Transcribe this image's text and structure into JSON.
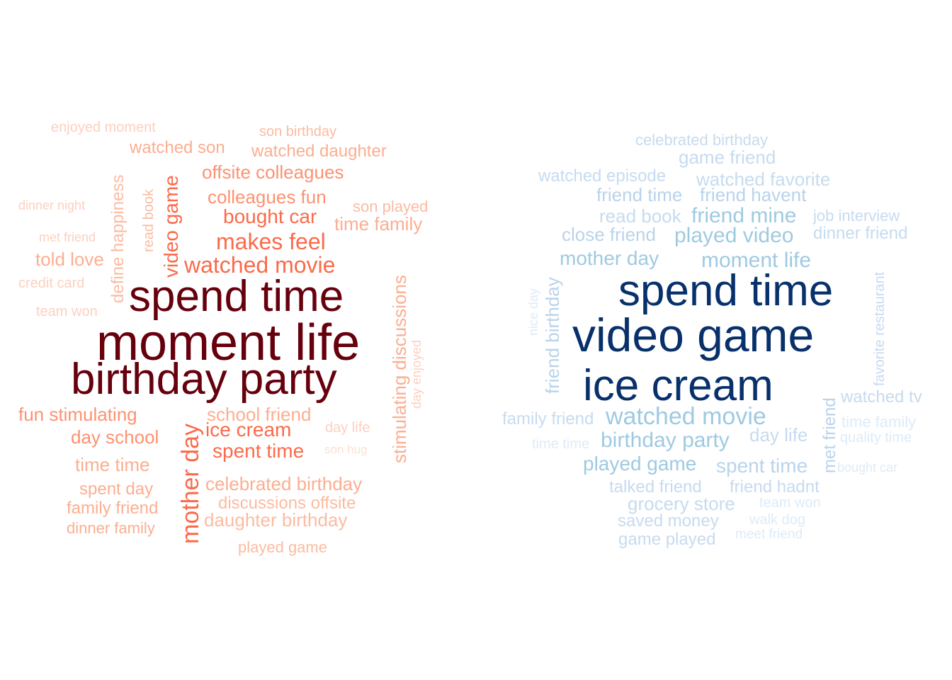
{
  "clouds": [
    {
      "id": "red",
      "words": [
        {
          "text": "spend time",
          "color": "#67000d",
          "weight": 1.0
        },
        {
          "text": "moment life",
          "color": "#67000d",
          "weight": 1.0
        },
        {
          "text": "birthday party",
          "color": "#67000d",
          "weight": 1.0
        },
        {
          "text": "watched movie",
          "color": "#fb6a4a",
          "weight": 0.45
        },
        {
          "text": "makes feel",
          "color": "#fb6a4a",
          "weight": 0.45
        },
        {
          "text": "bought car",
          "color": "#fb6a4a",
          "weight": 0.4
        },
        {
          "text": "ice cream",
          "color": "#fb6a4a",
          "weight": 0.4
        },
        {
          "text": "spent time",
          "color": "#fb6a4a",
          "weight": 0.4
        },
        {
          "text": "mother day",
          "color": "#fb6a4a",
          "weight": 0.45,
          "rotate": -90
        },
        {
          "text": "video game",
          "color": "#fb6a4a",
          "weight": 0.4,
          "rotate": -90
        },
        {
          "text": "colleagues fun",
          "color": "#fc9272",
          "weight": 0.35
        },
        {
          "text": "offsite colleagues",
          "color": "#fc9272",
          "weight": 0.35
        },
        {
          "text": "watched daughter",
          "color": "#fcae91",
          "weight": 0.3
        },
        {
          "text": "watched son",
          "color": "#fcae91",
          "weight": 0.3
        },
        {
          "text": "son birthday",
          "color": "#fcbba1",
          "weight": 0.25
        },
        {
          "text": "enjoyed moment",
          "color": "#fdd0c0",
          "weight": 0.2
        },
        {
          "text": "define happiness",
          "color": "#fcbba1",
          "weight": 0.3,
          "rotate": -90
        },
        {
          "text": "read book",
          "color": "#fcbba1",
          "weight": 0.25,
          "rotate": -90
        },
        {
          "text": "son played",
          "color": "#fcbba1",
          "weight": 0.25
        },
        {
          "text": "time family",
          "color": "#fcae91",
          "weight": 0.3
        },
        {
          "text": "dinner night",
          "color": "#fdd0c0",
          "weight": 0.2
        },
        {
          "text": "met friend",
          "color": "#fdd0c0",
          "weight": 0.2
        },
        {
          "text": "told love",
          "color": "#fcae91",
          "weight": 0.3
        },
        {
          "text": "credit card",
          "color": "#fdd0c0",
          "weight": 0.2
        },
        {
          "text": "team won",
          "color": "#fdd0c0",
          "weight": 0.2
        },
        {
          "text": "stimulating discussions",
          "color": "#fcae91",
          "weight": 0.3,
          "rotate": -90
        },
        {
          "text": "day enjoyed",
          "color": "#fdd0c0",
          "weight": 0.2,
          "rotate": -90
        },
        {
          "text": "fun stimulating",
          "color": "#fc9272",
          "weight": 0.3
        },
        {
          "text": "school friend",
          "color": "#fcae91",
          "weight": 0.3
        },
        {
          "text": "day life",
          "color": "#fdd0c0",
          "weight": 0.2
        },
        {
          "text": "son hug",
          "color": "#fde0d4",
          "weight": 0.15
        },
        {
          "text": "day school",
          "color": "#fc9272",
          "weight": 0.3
        },
        {
          "text": "time time",
          "color": "#fcae91",
          "weight": 0.3
        },
        {
          "text": "spent day",
          "color": "#fcae91",
          "weight": 0.3
        },
        {
          "text": "family friend",
          "color": "#fcae91",
          "weight": 0.25
        },
        {
          "text": "dinner family",
          "color": "#fcae91",
          "weight": 0.25
        },
        {
          "text": "celebrated birthday",
          "color": "#fcae91",
          "weight": 0.3
        },
        {
          "text": "discussions offsite",
          "color": "#fcbba1",
          "weight": 0.25
        },
        {
          "text": "daughter birthday",
          "color": "#fcbba1",
          "weight": 0.25
        },
        {
          "text": "played game",
          "color": "#fcbba1",
          "weight": 0.25
        }
      ]
    },
    {
      "id": "blue",
      "words": [
        {
          "text": "spend time",
          "color": "#08306b",
          "weight": 1.0
        },
        {
          "text": "video game",
          "color": "#08306b",
          "weight": 1.0
        },
        {
          "text": "ice cream",
          "color": "#08306b",
          "weight": 1.0
        },
        {
          "text": "celebrated birthday",
          "color": "#c6dbef",
          "weight": 0.2
        },
        {
          "text": "game friend",
          "color": "#c6dbef",
          "weight": 0.25
        },
        {
          "text": "watched episode",
          "color": "#c6dbef",
          "weight": 0.2
        },
        {
          "text": "watched favorite",
          "color": "#c6dbef",
          "weight": 0.25
        },
        {
          "text": "friend time",
          "color": "#b9d3ea",
          "weight": 0.25
        },
        {
          "text": "friend havent",
          "color": "#b9d3ea",
          "weight": 0.25
        },
        {
          "text": "read book",
          "color": "#c6dbef",
          "weight": 0.25
        },
        {
          "text": "friend mine",
          "color": "#9ecae1",
          "weight": 0.3
        },
        {
          "text": "job interview",
          "color": "#c6dbef",
          "weight": 0.2
        },
        {
          "text": "close friend",
          "color": "#b9d3ea",
          "weight": 0.25
        },
        {
          "text": "played video",
          "color": "#9ecae1",
          "weight": 0.3
        },
        {
          "text": "dinner friend",
          "color": "#c6dbef",
          "weight": 0.2
        },
        {
          "text": "mother day",
          "color": "#9ecae1",
          "weight": 0.3
        },
        {
          "text": "moment life",
          "color": "#9ecae1",
          "weight": 0.3
        },
        {
          "text": "nice day",
          "color": "#deebf7",
          "weight": 0.15,
          "rotate": -90
        },
        {
          "text": "friend birthday",
          "color": "#b9d3ea",
          "weight": 0.25,
          "rotate": -90
        },
        {
          "text": "favorite restaurant",
          "color": "#c6dbef",
          "weight": 0.2,
          "rotate": -90
        },
        {
          "text": "met friend",
          "color": "#b9d3ea",
          "weight": 0.25,
          "rotate": -90
        },
        {
          "text": "family friend",
          "color": "#c6dbef",
          "weight": 0.2
        },
        {
          "text": "watched movie",
          "color": "#9ecae1",
          "weight": 0.35
        },
        {
          "text": "watched tv",
          "color": "#c6dbef",
          "weight": 0.2
        },
        {
          "text": "time family",
          "color": "#deebf7",
          "weight": 0.15
        },
        {
          "text": "time time",
          "color": "#deebf7",
          "weight": 0.15
        },
        {
          "text": "birthday party",
          "color": "#9ecae1",
          "weight": 0.3
        },
        {
          "text": "day life",
          "color": "#c6dbef",
          "weight": 0.2
        },
        {
          "text": "quality time",
          "color": "#deebf7",
          "weight": 0.15
        },
        {
          "text": "played game",
          "color": "#9ecae1",
          "weight": 0.3
        },
        {
          "text": "spent time",
          "color": "#b9d3ea",
          "weight": 0.25
        },
        {
          "text": "bought car",
          "color": "#deebf7",
          "weight": 0.15
        },
        {
          "text": "talked friend",
          "color": "#c6dbef",
          "weight": 0.25
        },
        {
          "text": "friend hadnt",
          "color": "#c6dbef",
          "weight": 0.25
        },
        {
          "text": "grocery store",
          "color": "#c6dbef",
          "weight": 0.25
        },
        {
          "text": "team won",
          "color": "#deebf7",
          "weight": 0.15
        },
        {
          "text": "saved money",
          "color": "#c6dbef",
          "weight": 0.25
        },
        {
          "text": "walk dog",
          "color": "#deebf7",
          "weight": 0.15
        },
        {
          "text": "game played",
          "color": "#c6dbef",
          "weight": 0.25
        },
        {
          "text": "meet friend",
          "color": "#deebf7",
          "weight": 0.15
        }
      ]
    }
  ]
}
